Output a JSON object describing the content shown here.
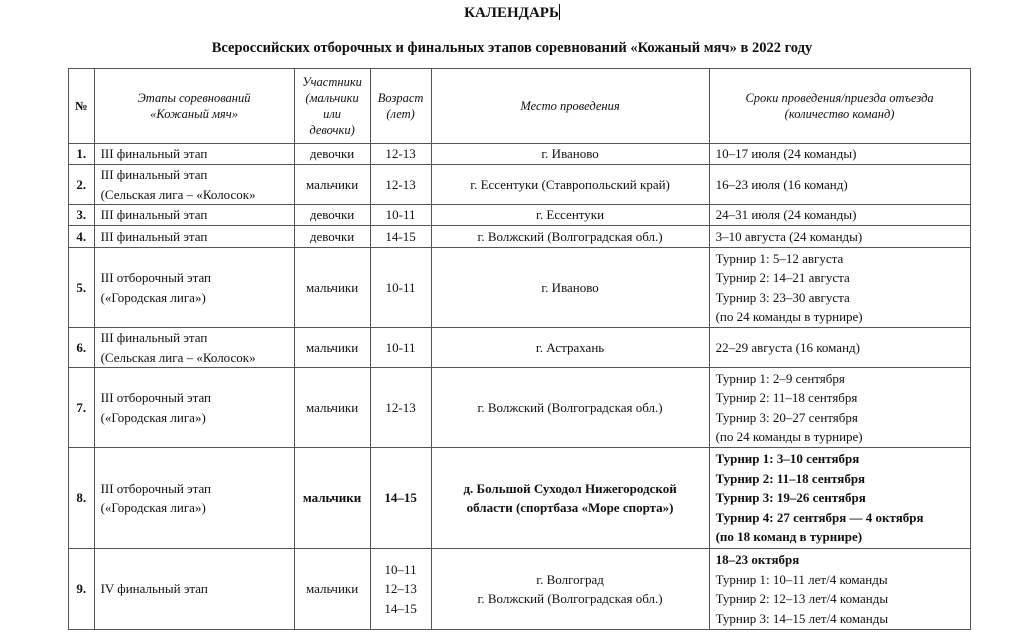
{
  "title": "КАЛЕНДАРЬ",
  "subtitle": "Всероссийских отборочных и финальных этапов соревнований «Кожаный мяч» в 2022 году",
  "headers": {
    "num": "№",
    "stage": [
      "Этапы соревнований",
      "«Кожаный мяч»"
    ],
    "participants": [
      "Участники",
      "(мальчики",
      "или",
      "девочки)"
    ],
    "age": [
      "Возраст",
      "(лет)"
    ],
    "place": "Место проведения",
    "dates": [
      "Сроки проведения/приезда отъезда",
      "(количество команд)"
    ]
  },
  "rows": [
    {
      "num": "1.",
      "stage": [
        "III финальный этап"
      ],
      "participants": "девочки",
      "age": [
        "12-13"
      ],
      "place": [
        "г. Иваново"
      ],
      "dates": [
        "10–17 июля (24 команды)"
      ],
      "bold": false
    },
    {
      "num": "2.",
      "stage": [
        "III финальный этап",
        "(Сельская лига – «Колосок»"
      ],
      "participants": "мальчики",
      "age": [
        "12-13"
      ],
      "place": [
        "г. Ессентуки (Ставропольский край)"
      ],
      "dates": [
        "16–23 июля (16 команд)"
      ],
      "bold": false
    },
    {
      "num": "3.",
      "stage": [
        "III финальный этап"
      ],
      "participants": "девочки",
      "age": [
        "10-11"
      ],
      "place": [
        "г. Ессентуки"
      ],
      "dates": [
        "24–31 июля (24 команды)"
      ],
      "bold": false
    },
    {
      "num": "4.",
      "stage": [
        "III финальный этап"
      ],
      "participants": "девочки",
      "age": [
        "14-15"
      ],
      "place": [
        "г. Волжский (Волгоградская обл.)"
      ],
      "dates": [
        "3–10 августа (24 команды)"
      ],
      "bold": false
    },
    {
      "num": "5.",
      "stage": [
        "III отборочный этап",
        "(«Городская лига»)"
      ],
      "participants": "мальчики",
      "age": [
        "10-11"
      ],
      "place": [
        "г. Иваново"
      ],
      "dates": [
        "Турнир 1: 5–12 августа",
        "Турнир 2: 14–21 августа",
        "Турнир 3: 23–30 августа",
        "(по 24 команды в турнире)"
      ],
      "bold": false
    },
    {
      "num": "6.",
      "stage": [
        "III финальный этап",
        "(Сельская лига – «Колосок»"
      ],
      "participants": "мальчики",
      "age": [
        "10-11"
      ],
      "place": [
        "г. Астрахань"
      ],
      "dates": [
        "22–29 августа (16 команд)"
      ],
      "bold": false
    },
    {
      "num": "7.",
      "stage": [
        "III отборочный этап",
        "(«Городская лига»)"
      ],
      "participants": "мальчики",
      "age": [
        "12-13"
      ],
      "place": [
        "г. Волжский (Волгоградская обл.)"
      ],
      "dates": [
        "Турнир 1: 2–9 сентября",
        "Турнир 2: 11–18 сентября",
        "Турнир 3: 20–27 сентября",
        "(по 24 команды в турнире)"
      ],
      "bold": false
    },
    {
      "num": "8.",
      "stage": [
        "III отборочный этап",
        "(«Городская лига»)"
      ],
      "participants": "мальчики",
      "age": [
        "14–15"
      ],
      "place": [
        "д. Большой Суходол Нижегородской",
        "области (спортбаза «Море спорта»)"
      ],
      "dates": [
        "Турнир 1: 3–10 сентября",
        "Турнир 2: 11–18 сентября",
        "Турнир 3: 19–26 сентября",
        "Турнир 4: 27 сентября — 4 октября",
        "(по 18 команд в турнире)"
      ],
      "bold": true
    },
    {
      "num": "9.",
      "stage": [
        "IV финальный этап"
      ],
      "participants": "мальчики",
      "age": [
        "10–11",
        "12–13",
        "14–15"
      ],
      "place": [
        "г. Волгоград",
        "г. Волжский (Волгоградская обл.)"
      ],
      "dates": [
        "18–23 октября",
        "Турнир 1: 10–11 лет/4 команды",
        "Турнир 2: 12–13 лет/4 команды",
        "Турнир 3: 14–15 лет/4 команды"
      ],
      "bold": false,
      "first_date_bold": true
    }
  ]
}
